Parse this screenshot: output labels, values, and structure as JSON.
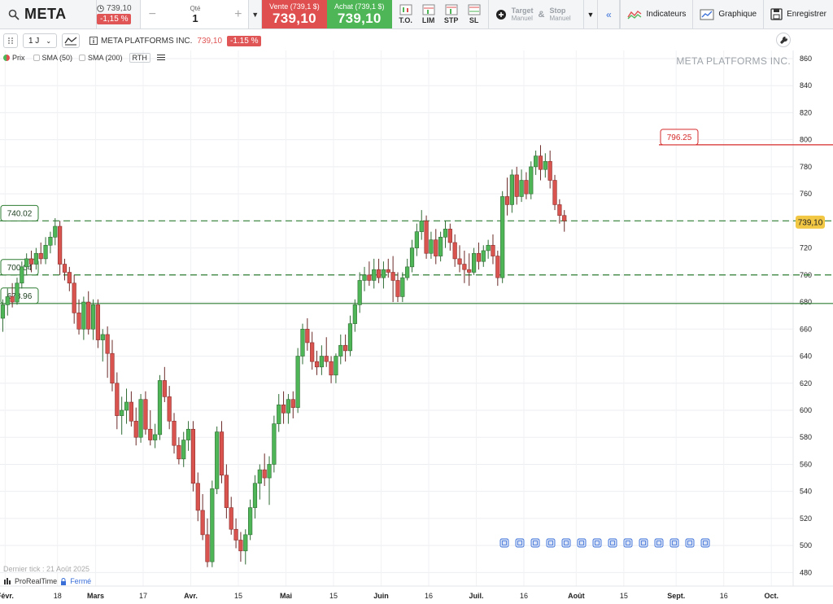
{
  "toolbar": {
    "ticker": "META",
    "quote_price": "739,10",
    "quote_change": "-1,15 %",
    "qty_label": "Qté",
    "qty_value": "1",
    "sell_label": "Vente (739,1 $)",
    "sell_value": "739,10",
    "buy_label": "Achat (739,1 $)",
    "buy_value": "739,10",
    "order_types": [
      "T.O.",
      "LIM",
      "STP",
      "SL"
    ],
    "target_label": "Target",
    "target_sub": "Manuel",
    "amp": "&",
    "stop_label": "Stop",
    "stop_sub": "Manuel",
    "indicators_label": "Indicateurs",
    "chart_label": "Graphique",
    "save_label": "Enregistrer"
  },
  "chart_header": {
    "timeframe": "1 J",
    "name": "META PLATFORMS INC.",
    "price": "739,10",
    "change": "-1.15 %"
  },
  "legend": {
    "price": "Prix",
    "sma50": "SMA (50)",
    "sma200": "SMA (200)",
    "rth": "RTH"
  },
  "footer": {
    "last_tick": "Dernier tick : 21 Août 2025",
    "brand": "ProRealTime",
    "status": "Fermé"
  },
  "colors": {
    "up": "#4fb657",
    "down": "#d9534f",
    "resistance": "#d62b2b",
    "support": "#2e7d32",
    "current": "#f2c744"
  },
  "chart_data": {
    "type": "candlestick",
    "title": "META PLATFORMS INC.",
    "ylim": [
      470,
      866
    ],
    "y_ticks": [
      480,
      500,
      520,
      540,
      560,
      580,
      600,
      620,
      640,
      660,
      680,
      700,
      720,
      740,
      760,
      780,
      800,
      820,
      840,
      860
    ],
    "x_ticks": [
      {
        "label": "Févr.",
        "major": true,
        "bar": 1
      },
      {
        "label": "18",
        "major": false,
        "bar": 12
      },
      {
        "label": "Mars",
        "major": true,
        "bar": 20
      },
      {
        "label": "17",
        "major": false,
        "bar": 30
      },
      {
        "label": "Avr.",
        "major": true,
        "bar": 40
      },
      {
        "label": "15",
        "major": false,
        "bar": 50
      },
      {
        "label": "Mai",
        "major": true,
        "bar": 60
      },
      {
        "label": "15",
        "major": false,
        "bar": 70
      },
      {
        "label": "Juin",
        "major": true,
        "bar": 80
      },
      {
        "label": "16",
        "major": false,
        "bar": 90
      },
      {
        "label": "Juil.",
        "major": true,
        "bar": 100
      },
      {
        "label": "16",
        "major": false,
        "bar": 110
      },
      {
        "label": "Août",
        "major": true,
        "bar": 121
      },
      {
        "label": "15",
        "major": false,
        "bar": 131
      },
      {
        "label": "Sept.",
        "major": true,
        "bar": 142
      },
      {
        "label": "16",
        "major": false,
        "bar": 152
      },
      {
        "label": "Oct.",
        "major": true,
        "bar": 162
      }
    ],
    "levels": [
      {
        "value": 796.25,
        "label": "796.25",
        "style": "solid",
        "color": "#d62b2b"
      },
      {
        "value": 740.02,
        "label": "740.02",
        "style": "dashed",
        "color": "#2e7d32"
      },
      {
        "value": 700.04,
        "label": "700.04",
        "style": "dashed",
        "color": "#2e7d32"
      },
      {
        "value": 678.96,
        "label": "678.96",
        "style": "solid",
        "color": "#2e7d32"
      }
    ],
    "current_price": {
      "value": 739.1,
      "label": "739,10"
    },
    "candles": [
      [
        668,
        682,
        658,
        678
      ],
      [
        678,
        690,
        670,
        684
      ],
      [
        684,
        694,
        676,
        680
      ],
      [
        680,
        698,
        678,
        694
      ],
      [
        694,
        710,
        690,
        706
      ],
      [
        706,
        716,
        700,
        712
      ],
      [
        712,
        718,
        702,
        708
      ],
      [
        708,
        720,
        704,
        716
      ],
      [
        716,
        724,
        708,
        712
      ],
      [
        712,
        728,
        708,
        722
      ],
      [
        722,
        732,
        716,
        728
      ],
      [
        728,
        742,
        722,
        736
      ],
      [
        736,
        740,
        700,
        708
      ],
      [
        708,
        712,
        696,
        702
      ],
      [
        702,
        706,
        688,
        694
      ],
      [
        694,
        700,
        664,
        672
      ],
      [
        672,
        682,
        656,
        660
      ],
      [
        660,
        684,
        652,
        680
      ],
      [
        680,
        688,
        656,
        660
      ],
      [
        660,
        682,
        652,
        678
      ],
      [
        678,
        682,
        646,
        652
      ],
      [
        652,
        660,
        636,
        656
      ],
      [
        656,
        662,
        624,
        642
      ],
      [
        642,
        652,
        614,
        620
      ],
      [
        620,
        628,
        586,
        596
      ],
      [
        596,
        610,
        582,
        600
      ],
      [
        600,
        616,
        590,
        606
      ],
      [
        606,
        614,
        588,
        592
      ],
      [
        592,
        602,
        574,
        580
      ],
      [
        580,
        612,
        576,
        608
      ],
      [
        608,
        614,
        582,
        586
      ],
      [
        586,
        600,
        574,
        578
      ],
      [
        578,
        590,
        572,
        582
      ],
      [
        582,
        626,
        578,
        622
      ],
      [
        622,
        632,
        606,
        610
      ],
      [
        610,
        618,
        586,
        592
      ],
      [
        592,
        598,
        568,
        574
      ],
      [
        574,
        580,
        560,
        564
      ],
      [
        564,
        584,
        558,
        578
      ],
      [
        578,
        592,
        570,
        586
      ],
      [
        586,
        592,
        540,
        546
      ],
      [
        546,
        554,
        518,
        526
      ],
      [
        526,
        538,
        504,
        508
      ],
      [
        508,
        520,
        484,
        488
      ],
      [
        488,
        548,
        484,
        542
      ],
      [
        542,
        588,
        538,
        584
      ],
      [
        584,
        592,
        546,
        552
      ],
      [
        552,
        560,
        520,
        528
      ],
      [
        528,
        536,
        508,
        512
      ],
      [
        512,
        520,
        498,
        504
      ],
      [
        504,
        510,
        488,
        496
      ],
      [
        496,
        512,
        486,
        508
      ],
      [
        508,
        534,
        504,
        528
      ],
      [
        528,
        552,
        520,
        546
      ],
      [
        546,
        560,
        534,
        556
      ],
      [
        556,
        568,
        544,
        550
      ],
      [
        550,
        566,
        530,
        560
      ],
      [
        560,
        596,
        554,
        590
      ],
      [
        590,
        612,
        584,
        604
      ],
      [
        604,
        614,
        590,
        598
      ],
      [
        598,
        612,
        590,
        608
      ],
      [
        608,
        614,
        594,
        602
      ],
      [
        602,
        646,
        598,
        640
      ],
      [
        640,
        664,
        634,
        660
      ],
      [
        660,
        668,
        644,
        650
      ],
      [
        650,
        658,
        630,
        636
      ],
      [
        636,
        644,
        626,
        632
      ],
      [
        632,
        648,
        626,
        640
      ],
      [
        640,
        654,
        632,
        636
      ],
      [
        636,
        640,
        620,
        626
      ],
      [
        626,
        642,
        620,
        640
      ],
      [
        640,
        656,
        634,
        648
      ],
      [
        648,
        656,
        636,
        644
      ],
      [
        644,
        670,
        640,
        664
      ],
      [
        664,
        682,
        658,
        678
      ],
      [
        678,
        702,
        672,
        696
      ],
      [
        696,
        706,
        688,
        700
      ],
      [
        700,
        710,
        692,
        696
      ],
      [
        696,
        712,
        690,
        704
      ],
      [
        704,
        712,
        694,
        698
      ],
      [
        698,
        710,
        690,
        704
      ],
      [
        704,
        712,
        698,
        702
      ],
      [
        702,
        714,
        680,
        696
      ],
      [
        696,
        702,
        680,
        684
      ],
      [
        684,
        702,
        680,
        698
      ],
      [
        698,
        712,
        696,
        706
      ],
      [
        706,
        726,
        702,
        720
      ],
      [
        720,
        738,
        714,
        732
      ],
      [
        732,
        748,
        726,
        740
      ],
      [
        740,
        744,
        712,
        716
      ],
      [
        716,
        732,
        712,
        726
      ],
      [
        726,
        734,
        708,
        714
      ],
      [
        714,
        732,
        710,
        728
      ],
      [
        728,
        740,
        720,
        734
      ],
      [
        734,
        738,
        718,
        724
      ],
      [
        724,
        730,
        706,
        712
      ],
      [
        712,
        722,
        702,
        708
      ],
      [
        708,
        718,
        694,
        704
      ],
      [
        704,
        716,
        692,
        702
      ],
      [
        702,
        720,
        700,
        716
      ],
      [
        716,
        724,
        704,
        710
      ],
      [
        710,
        722,
        706,
        718
      ],
      [
        718,
        726,
        712,
        722
      ],
      [
        722,
        730,
        708,
        714
      ],
      [
        714,
        718,
        692,
        698
      ],
      [
        698,
        762,
        694,
        758
      ],
      [
        758,
        772,
        744,
        752
      ],
      [
        752,
        778,
        746,
        774
      ],
      [
        774,
        780,
        752,
        758
      ],
      [
        758,
        778,
        754,
        770
      ],
      [
        770,
        776,
        756,
        760
      ],
      [
        760,
        784,
        756,
        780
      ],
      [
        780,
        792,
        774,
        788
      ],
      [
        788,
        796,
        770,
        778
      ],
      [
        778,
        790,
        772,
        784
      ],
      [
        784,
        792,
        764,
        770
      ],
      [
        770,
        774,
        748,
        752
      ],
      [
        752,
        756,
        738,
        744
      ],
      [
        744,
        748,
        732,
        740
      ]
    ]
  }
}
